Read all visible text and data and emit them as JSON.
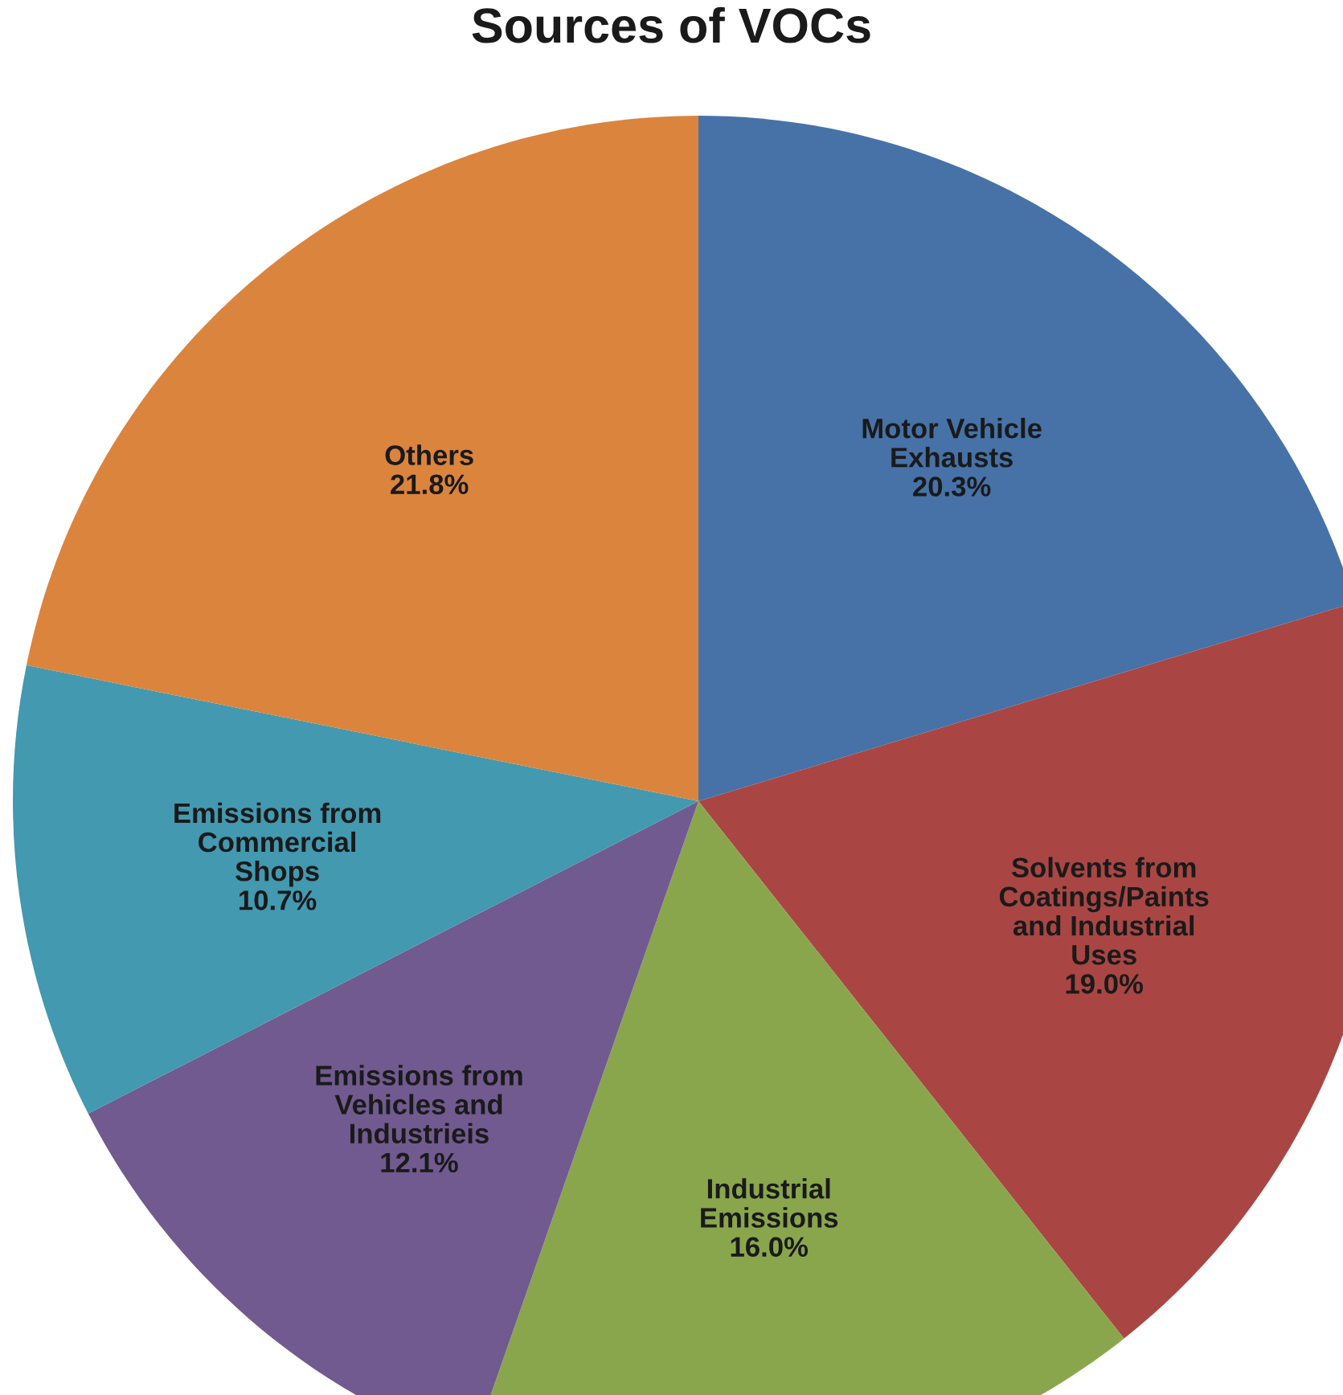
{
  "chart_data": {
    "type": "pie",
    "title": "Sources of VOCs",
    "categories": [
      "Motor Vehicle\nExhausts",
      "Solvents from\nCoatings/Paints\nand Industrial\nUses",
      "Industrial\nEmissions",
      "Emissions from\nVehicles and\nIndustrieis",
      "Emissions from\nCommercial\nShops",
      "Others"
    ],
    "values": [
      20.3,
      19.0,
      16.0,
      12.1,
      10.7,
      21.8
    ],
    "value_labels": [
      "20.3%",
      "19.0%",
      "16.0%",
      "12.1%",
      "10.7%",
      "21.8%"
    ],
    "colors": [
      "#4672a8",
      "#a94644",
      "#8aa64c",
      "#715a8f",
      "#4299b0",
      "#db843d"
    ]
  }
}
